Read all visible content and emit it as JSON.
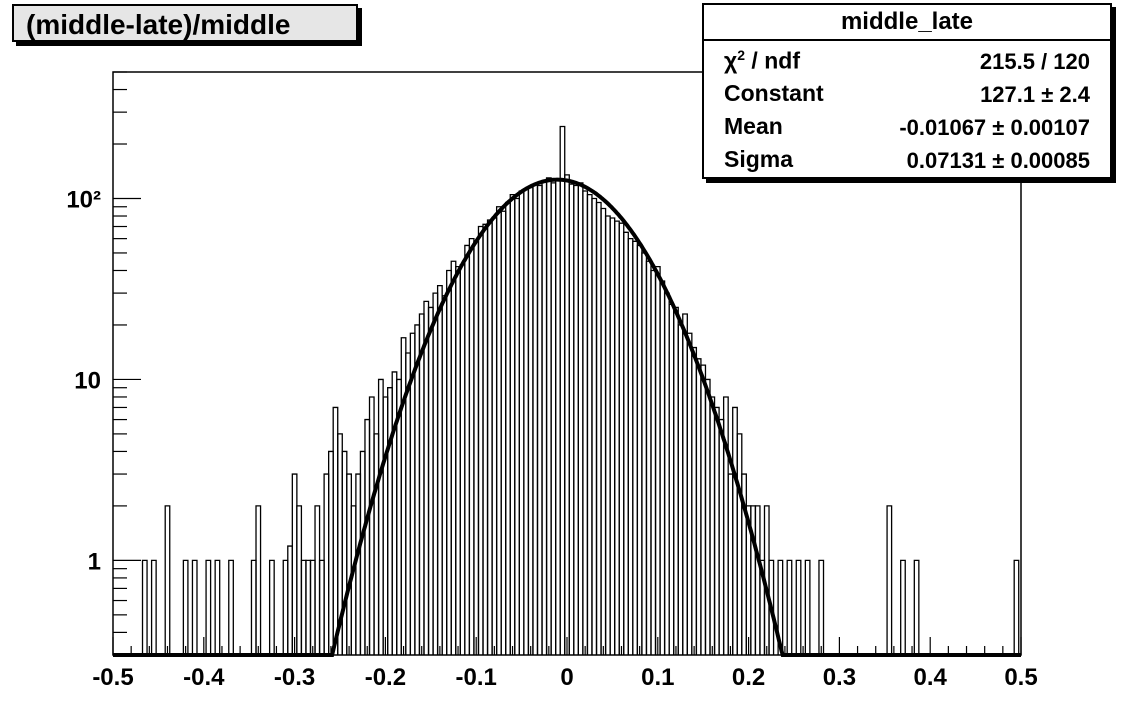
{
  "title_box": {
    "text": "(middle-late)/middle"
  },
  "stats": {
    "name": "middle_late",
    "rows": [
      {
        "label": "χ² / ndf",
        "value": "215.5 / 120"
      },
      {
        "label": "Constant",
        "value": "127.1 ± 2.4"
      },
      {
        "label": "Mean",
        "value": "-0.01067 ± 0.00107"
      },
      {
        "label": "Sigma",
        "value": "0.07131 ± 0.00085"
      }
    ]
  },
  "chart_data": {
    "type": "histogram",
    "title": "(middle-late)/middle",
    "xlabel": "",
    "ylabel": "",
    "xlim": [
      -0.5,
      0.5
    ],
    "ylim": [
      0.3,
      500
    ],
    "y_scale": "log",
    "grid": false,
    "x_ticks": [
      "-0.5",
      "-0.4",
      "-0.3",
      "-0.2",
      "-0.1",
      "0",
      "0.1",
      "0.2",
      "0.3",
      "0.4",
      "0.5"
    ],
    "y_ticks": [
      "1",
      "10",
      "10²"
    ],
    "bin_width": 0.005,
    "bins": [
      {
        "x": -0.465,
        "y": 1
      },
      {
        "x": -0.455,
        "y": 1
      },
      {
        "x": -0.44,
        "y": 2
      },
      {
        "x": -0.42,
        "y": 1
      },
      {
        "x": -0.41,
        "y": 1
      },
      {
        "x": -0.395,
        "y": 1
      },
      {
        "x": -0.385,
        "y": 1
      },
      {
        "x": -0.37,
        "y": 1
      },
      {
        "x": -0.345,
        "y": 1
      },
      {
        "x": -0.34,
        "y": 2
      },
      {
        "x": -0.325,
        "y": 1
      },
      {
        "x": -0.31,
        "y": 1
      },
      {
        "x": -0.305,
        "y": 1.2
      },
      {
        "x": -0.3,
        "y": 3
      },
      {
        "x": -0.295,
        "y": 2
      },
      {
        "x": -0.29,
        "y": 1
      },
      {
        "x": -0.285,
        "y": 1
      },
      {
        "x": -0.28,
        "y": 1
      },
      {
        "x": -0.275,
        "y": 2
      },
      {
        "x": -0.27,
        "y": 1
      },
      {
        "x": -0.265,
        "y": 3
      },
      {
        "x": -0.26,
        "y": 4
      },
      {
        "x": -0.255,
        "y": 7
      },
      {
        "x": -0.25,
        "y": 5
      },
      {
        "x": -0.245,
        "y": 4
      },
      {
        "x": -0.24,
        "y": 3
      },
      {
        "x": -0.235,
        "y": 2
      },
      {
        "x": -0.23,
        "y": 3
      },
      {
        "x": -0.225,
        "y": 4
      },
      {
        "x": -0.22,
        "y": 6
      },
      {
        "x": -0.215,
        "y": 8
      },
      {
        "x": -0.21,
        "y": 5
      },
      {
        "x": -0.205,
        "y": 10
      },
      {
        "x": -0.2,
        "y": 8
      },
      {
        "x": -0.195,
        "y": 9
      },
      {
        "x": -0.19,
        "y": 11
      },
      {
        "x": -0.185,
        "y": 10
      },
      {
        "x": -0.18,
        "y": 17
      },
      {
        "x": -0.175,
        "y": 14
      },
      {
        "x": -0.17,
        "y": 18
      },
      {
        "x": -0.165,
        "y": 20
      },
      {
        "x": -0.16,
        "y": 23
      },
      {
        "x": -0.155,
        "y": 27
      },
      {
        "x": -0.15,
        "y": 25
      },
      {
        "x": -0.145,
        "y": 30
      },
      {
        "x": -0.14,
        "y": 33
      },
      {
        "x": -0.135,
        "y": 29
      },
      {
        "x": -0.13,
        "y": 40
      },
      {
        "x": -0.125,
        "y": 45
      },
      {
        "x": -0.12,
        "y": 42
      },
      {
        "x": -0.115,
        "y": 43
      },
      {
        "x": -0.11,
        "y": 55
      },
      {
        "x": -0.105,
        "y": 60
      },
      {
        "x": -0.1,
        "y": 58
      },
      {
        "x": -0.095,
        "y": 70
      },
      {
        "x": -0.09,
        "y": 72
      },
      {
        "x": -0.085,
        "y": 76
      },
      {
        "x": -0.08,
        "y": 78
      },
      {
        "x": -0.075,
        "y": 90
      },
      {
        "x": -0.07,
        "y": 85
      },
      {
        "x": -0.065,
        "y": 95
      },
      {
        "x": -0.06,
        "y": 105
      },
      {
        "x": -0.055,
        "y": 100
      },
      {
        "x": -0.05,
        "y": 110
      },
      {
        "x": -0.045,
        "y": 112
      },
      {
        "x": -0.04,
        "y": 115
      },
      {
        "x": -0.035,
        "y": 120
      },
      {
        "x": -0.03,
        "y": 118
      },
      {
        "x": -0.025,
        "y": 125
      },
      {
        "x": -0.02,
        "y": 130
      },
      {
        "x": -0.015,
        "y": 122
      },
      {
        "x": -0.01,
        "y": 128
      },
      {
        "x": -0.005,
        "y": 250
      },
      {
        "x": 0.0,
        "y": 135
      },
      {
        "x": 0.005,
        "y": 120
      },
      {
        "x": 0.01,
        "y": 118
      },
      {
        "x": 0.015,
        "y": 122
      },
      {
        "x": 0.02,
        "y": 110
      },
      {
        "x": 0.025,
        "y": 105
      },
      {
        "x": 0.03,
        "y": 100
      },
      {
        "x": 0.035,
        "y": 95
      },
      {
        "x": 0.04,
        "y": 88
      },
      {
        "x": 0.045,
        "y": 80
      },
      {
        "x": 0.05,
        "y": 78
      },
      {
        "x": 0.055,
        "y": 75
      },
      {
        "x": 0.06,
        "y": 73
      },
      {
        "x": 0.065,
        "y": 65
      },
      {
        "x": 0.07,
        "y": 60
      },
      {
        "x": 0.075,
        "y": 58
      },
      {
        "x": 0.08,
        "y": 55
      },
      {
        "x": 0.085,
        "y": 50
      },
      {
        "x": 0.09,
        "y": 45
      },
      {
        "x": 0.095,
        "y": 40
      },
      {
        "x": 0.1,
        "y": 42
      },
      {
        "x": 0.105,
        "y": 35
      },
      {
        "x": 0.11,
        "y": 30
      },
      {
        "x": 0.115,
        "y": 26
      },
      {
        "x": 0.12,
        "y": 25
      },
      {
        "x": 0.125,
        "y": 20
      },
      {
        "x": 0.13,
        "y": 23
      },
      {
        "x": 0.135,
        "y": 18
      },
      {
        "x": 0.14,
        "y": 15
      },
      {
        "x": 0.145,
        "y": 13
      },
      {
        "x": 0.15,
        "y": 12
      },
      {
        "x": 0.155,
        "y": 10
      },
      {
        "x": 0.16,
        "y": 8
      },
      {
        "x": 0.165,
        "y": 7
      },
      {
        "x": 0.17,
        "y": 6
      },
      {
        "x": 0.175,
        "y": 8
      },
      {
        "x": 0.18,
        "y": 3
      },
      {
        "x": 0.185,
        "y": 7
      },
      {
        "x": 0.19,
        "y": 5
      },
      {
        "x": 0.195,
        "y": 3
      },
      {
        "x": 0.2,
        "y": 2
      },
      {
        "x": 0.205,
        "y": 2
      },
      {
        "x": 0.21,
        "y": 2
      },
      {
        "x": 0.215,
        "y": 1
      },
      {
        "x": 0.22,
        "y": 2
      },
      {
        "x": 0.225,
        "y": 1
      },
      {
        "x": 0.235,
        "y": 1
      },
      {
        "x": 0.245,
        "y": 1
      },
      {
        "x": 0.255,
        "y": 1
      },
      {
        "x": 0.265,
        "y": 1
      },
      {
        "x": 0.28,
        "y": 1
      },
      {
        "x": 0.355,
        "y": 2
      },
      {
        "x": 0.37,
        "y": 1
      },
      {
        "x": 0.385,
        "y": 1
      },
      {
        "x": 0.495,
        "y": 1
      }
    ],
    "fit": {
      "function": "gaus",
      "constant": 127.1,
      "mean": -0.01067,
      "sigma": 0.07131,
      "range": [
        -0.5,
        0.5
      ]
    }
  }
}
